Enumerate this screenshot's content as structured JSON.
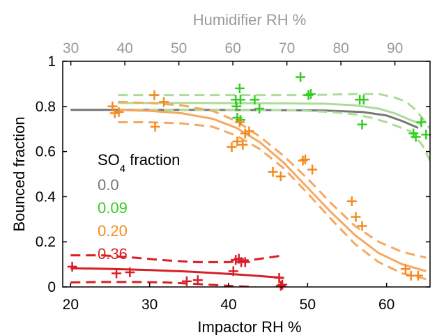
{
  "chart_data": {
    "type": "scatter",
    "title": "",
    "xlabel": "Impactor RH %",
    "ylabel": "Bounced fraction",
    "top_xlabel": "Humidifier RH %",
    "xlim": [
      19,
      65.5
    ],
    "ylim": [
      0,
      1
    ],
    "x_ticks": [
      20,
      30,
      40,
      50,
      60
    ],
    "y_ticks": [
      0,
      0.2,
      0.4,
      0.6,
      0.8,
      1
    ],
    "y_tick_labels": [
      "0",
      "0.2",
      "0.4",
      "0.6",
      "0.8",
      "1"
    ],
    "top_x_ticks": [
      30,
      40,
      50,
      60,
      70,
      80,
      90
    ],
    "top_xlim": [
      28.5,
      96.5
    ],
    "grid": false,
    "legend": {
      "title_main": "SO",
      "title_sub": "4",
      "title_rest": " fraction",
      "placement": "center-left",
      "entries": [
        {
          "label": "0.0",
          "color": "#777777"
        },
        {
          "label": "0.09",
          "color": "#33cc22"
        },
        {
          "label": "0.20",
          "color": "#f58a1f"
        },
        {
          "label": "0.36",
          "color": "#d81f26"
        }
      ]
    },
    "series": [
      {
        "name": "0.0",
        "color": "#777777",
        "points": [],
        "fit": {
          "x": [
            20,
            35,
            45,
            52,
            57,
            60,
            62,
            64
          ],
          "y": [
            0.785,
            0.785,
            0.784,
            0.782,
            0.775,
            0.76,
            0.735,
            0.705
          ]
        }
      },
      {
        "name": "0.09",
        "color": "#33cc22",
        "fit_color": "#aadd99",
        "points": [
          [
            40.9,
            0.83
          ],
          [
            41.0,
            0.8
          ],
          [
            41.1,
            0.75
          ],
          [
            41.4,
            0.88
          ],
          [
            41.5,
            0.83
          ],
          [
            41.5,
            0.74
          ],
          [
            43.3,
            0.83
          ],
          [
            43.9,
            0.79
          ],
          [
            49.1,
            0.93
          ],
          [
            50.1,
            0.85
          ],
          [
            50.4,
            0.855
          ],
          [
            56.6,
            0.83
          ],
          [
            57.1,
            0.83
          ],
          [
            56.9,
            0.72
          ],
          [
            63.4,
            0.68
          ],
          [
            63.7,
            0.665
          ],
          [
            64.4,
            0.73
          ],
          [
            65.0,
            0.675
          ]
        ],
        "fit": {
          "x": [
            26,
            35,
            45,
            52,
            56,
            59,
            61,
            63,
            64.5
          ],
          "y": [
            0.815,
            0.815,
            0.814,
            0.812,
            0.805,
            0.79,
            0.77,
            0.74,
            0.72
          ]
        },
        "ci_upper": {
          "x": [
            26,
            40,
            50,
            56,
            59,
            61,
            62.5,
            63.5,
            64.5,
            65.5
          ],
          "y": [
            0.85,
            0.85,
            0.85,
            0.855,
            0.855,
            0.84,
            0.82,
            0.79,
            0.75,
            0.7
          ]
        },
        "ci_lower": {
          "x": [
            26,
            40,
            48,
            53,
            56,
            58,
            60,
            61.5,
            63,
            64.5,
            65.5
          ],
          "y": [
            0.785,
            0.785,
            0.784,
            0.775,
            0.765,
            0.75,
            0.73,
            0.71,
            0.69,
            0.63,
            0.56
          ]
        }
      },
      {
        "name": "0.20",
        "color": "#f58a1f",
        "fit_color": "#f6a860",
        "points": [
          [
            25.3,
            0.8
          ],
          [
            25.6,
            0.77
          ],
          [
            26.1,
            0.775
          ],
          [
            30.6,
            0.85
          ],
          [
            31.8,
            0.82
          ],
          [
            30.7,
            0.71
          ],
          [
            40.4,
            0.62
          ],
          [
            41.1,
            0.645
          ],
          [
            41.4,
            0.73
          ],
          [
            41.8,
            0.63
          ],
          [
            42.1,
            0.68
          ],
          [
            42.6,
            0.69
          ],
          [
            45.6,
            0.51
          ],
          [
            46.6,
            0.49
          ],
          [
            49.4,
            0.56
          ],
          [
            49.7,
            0.565
          ],
          [
            50.6,
            0.52
          ],
          [
            55.6,
            0.38
          ],
          [
            56.1,
            0.31
          ],
          [
            56.9,
            0.27
          ],
          [
            62.4,
            0.08
          ],
          [
            63.1,
            0.05
          ],
          [
            64.0,
            0.05
          ]
        ],
        "fit": {
          "x": [
            26,
            30,
            34,
            38,
            41,
            44,
            47,
            50,
            53,
            56,
            59,
            62,
            65
          ],
          "y": [
            0.785,
            0.78,
            0.77,
            0.745,
            0.705,
            0.64,
            0.55,
            0.44,
            0.33,
            0.23,
            0.15,
            0.1,
            0.07
          ]
        },
        "ci_upper": {
          "x": [
            26,
            30,
            34,
            38,
            41,
            44,
            47,
            50,
            53,
            56,
            59,
            62,
            65
          ],
          "y": [
            0.82,
            0.815,
            0.805,
            0.78,
            0.735,
            0.665,
            0.58,
            0.48,
            0.37,
            0.27,
            0.2,
            0.155,
            0.13
          ]
        },
        "ci_lower": {
          "x": [
            26,
            30,
            34,
            38,
            41,
            44,
            47,
            50,
            53,
            56,
            59,
            62,
            65
          ],
          "y": [
            0.73,
            0.73,
            0.725,
            0.71,
            0.67,
            0.61,
            0.525,
            0.415,
            0.3,
            0.19,
            0.11,
            0.06,
            0.035
          ]
        }
      },
      {
        "name": "0.36",
        "color": "#d81f26",
        "points": [
          [
            20.2,
            0.09
          ],
          [
            25.8,
            0.06
          ],
          [
            27.5,
            0.065
          ],
          [
            34.7,
            0.025
          ],
          [
            36.1,
            0.03
          ],
          [
            40.6,
            0.07
          ],
          [
            40.9,
            0.12
          ],
          [
            41.3,
            0.125
          ],
          [
            41.6,
            0.11
          ],
          [
            42.1,
            0.11
          ],
          [
            46.4,
            0.04
          ],
          [
            46.6,
            0.005
          ],
          [
            46.8,
            0.01
          ]
        ],
        "fit": {
          "x": [
            20,
            25,
            30,
            35,
            40,
            44,
            47
          ],
          "y": [
            0.083,
            0.08,
            0.075,
            0.068,
            0.058,
            0.048,
            0.04
          ]
        },
        "ci_upper": {
          "x": [
            20,
            24,
            28,
            32,
            36,
            40,
            43,
            45,
            47
          ],
          "y": [
            0.14,
            0.14,
            0.13,
            0.118,
            0.11,
            0.11,
            0.12,
            0.13,
            0.14
          ]
        },
        "ci_lower": {
          "x": [
            20,
            24,
            28,
            32,
            36,
            40,
            43,
            45,
            47
          ],
          "y": [
            0.02,
            0.022,
            0.022,
            0.02,
            0.013,
            0.005,
            0.0,
            -0.01,
            -0.02
          ]
        }
      }
    ]
  }
}
